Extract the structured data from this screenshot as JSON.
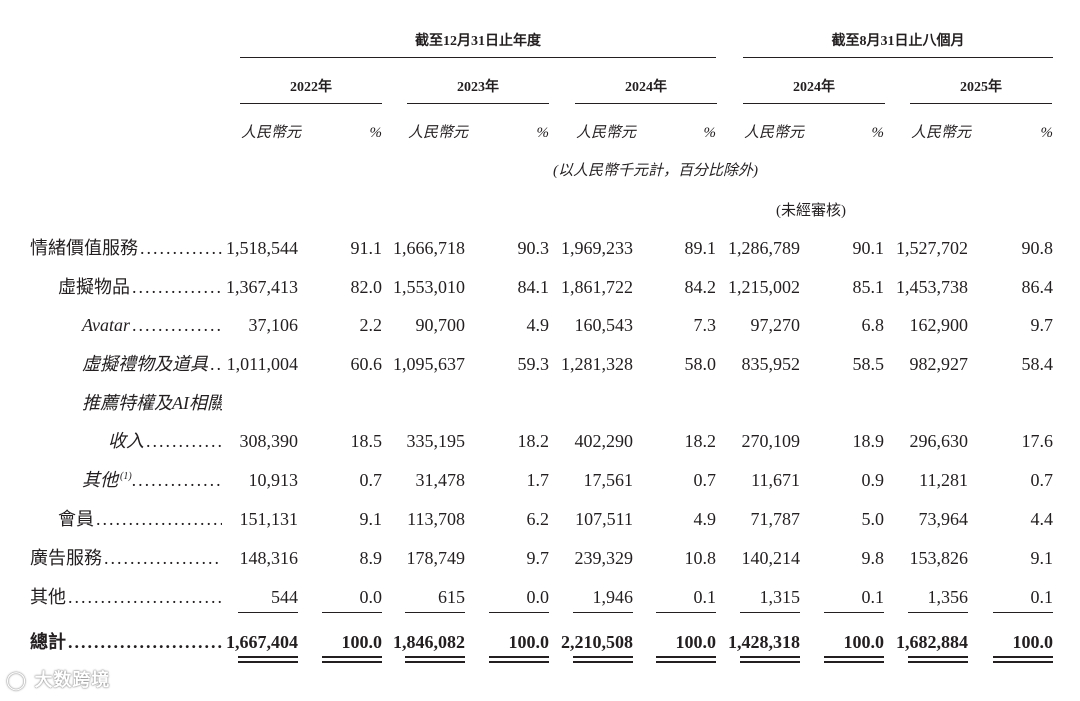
{
  "header": {
    "group1": "截至12月31日止年度",
    "group2": "截至8月31日止八個月",
    "years": [
      "2022年",
      "2023年",
      "2024年",
      "2024年",
      "2025年"
    ],
    "unit_rmb": "人民幣元",
    "unit_pct": "%",
    "note_thousands": "(以人民幣千元計，百分比除外)",
    "note_unaudited": "(未經審核)"
  },
  "rows": [
    {
      "label": "情緒價值服務",
      "indent": 0,
      "values": [
        "1,518,544",
        "91.1",
        "1,666,718",
        "90.3",
        "1,969,233",
        "89.1",
        "1,286,789",
        "90.1",
        "1,527,702",
        "90.8"
      ]
    },
    {
      "label": "虛擬物品",
      "indent": 1,
      "values": [
        "1,367,413",
        "82.0",
        "1,553,010",
        "84.1",
        "1,861,722",
        "84.2",
        "1,215,002",
        "85.1",
        "1,453,738",
        "86.4"
      ]
    },
    {
      "label": "Avatar",
      "indent": 2,
      "values": [
        "37,106",
        "2.2",
        "90,700",
        "4.9",
        "160,543",
        "7.3",
        "97,270",
        "6.8",
        "162,900",
        "9.7"
      ]
    },
    {
      "label": "虛擬禮物及道具",
      "indent": 2,
      "values": [
        "1,011,004",
        "60.6",
        "1,095,637",
        "59.3",
        "1,281,328",
        "58.0",
        "835,952",
        "58.5",
        "982,927",
        "58.4"
      ]
    },
    {
      "label": "推薦特權及AI相關",
      "label2": "收入",
      "indent": 2,
      "values": [
        "308,390",
        "18.5",
        "335,195",
        "18.2",
        "402,290",
        "18.2",
        "270,109",
        "18.9",
        "296,630",
        "17.6"
      ]
    },
    {
      "label": "其他",
      "sup": "(1)",
      "indent": 2,
      "values": [
        "10,913",
        "0.7",
        "31,478",
        "1.7",
        "17,561",
        "0.7",
        "11,671",
        "0.9",
        "11,281",
        "0.7"
      ]
    },
    {
      "label": "會員",
      "indent": 1,
      "values": [
        "151,131",
        "9.1",
        "113,708",
        "6.2",
        "107,511",
        "4.9",
        "71,787",
        "5.0",
        "73,964",
        "4.4"
      ]
    },
    {
      "label": "廣告服務",
      "indent": 0,
      "values": [
        "148,316",
        "8.9",
        "178,749",
        "9.7",
        "239,329",
        "10.8",
        "140,214",
        "9.8",
        "153,826",
        "9.1"
      ]
    },
    {
      "label": "其他",
      "indent": 0,
      "values": [
        "544",
        "0.0",
        "615",
        "0.0",
        "1,946",
        "0.1",
        "1,315",
        "0.1",
        "1,356",
        "0.1"
      ]
    }
  ],
  "total": {
    "label": "總計",
    "values": [
      "1,667,404",
      "100.0",
      "1,846,082",
      "100.0",
      "2,210,508",
      "100.0",
      "1,428,318",
      "100.0",
      "1,682,884",
      "100.0"
    ]
  },
  "watermark": "大数跨境"
}
